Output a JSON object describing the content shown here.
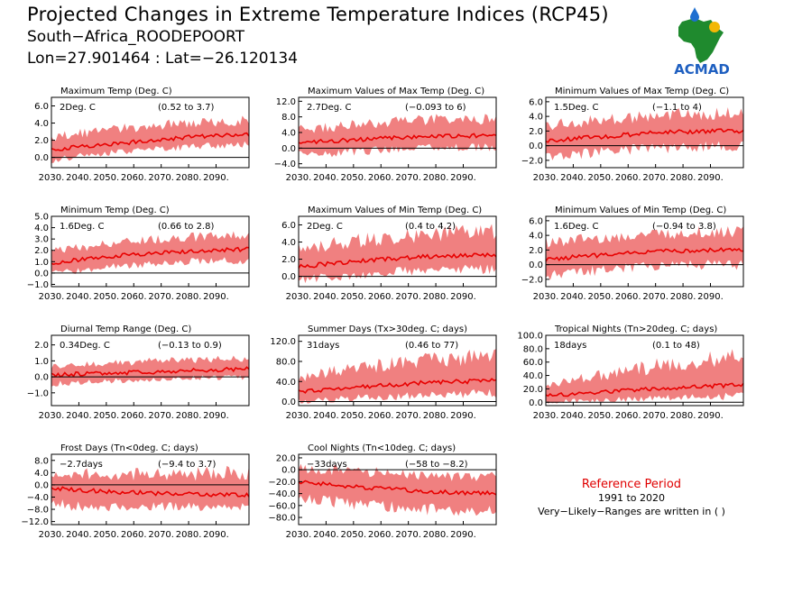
{
  "header": {
    "title": "Projected Changes in Extreme Temperature Indices (RCP45)",
    "subtitle": "South−Africa_ROODEPOORT",
    "coords": "Lon=27.901464 : Lat=−26.120134"
  },
  "logo": {
    "icon": "africa-map-logo",
    "text": "ACMAD"
  },
  "reference": {
    "title": "Reference Period",
    "years": "1991 to 2020",
    "note": "Very−Likely−Ranges are written in ( )"
  },
  "colors": {
    "band": "#f08080",
    "line": "#e80000",
    "reference_title": "#e00000"
  },
  "chart_data": [
    {
      "type": "area",
      "title": "Maximum Temp (Deg. C)",
      "change": "2Deg. C",
      "range": "(0.52 to 3.7)",
      "x_ticks": [
        "2030.",
        "2040.",
        "2050.",
        "2060.",
        "2070.",
        "2080.",
        "2090."
      ],
      "y_ticks": [
        6.0,
        4.0,
        2.0,
        0.0
      ],
      "ylim": [
        -1.2,
        7.0
      ],
      "series": [
        {
          "values": [
            0.9,
            1.3,
            1.6,
            2.0,
            2.3,
            2.5,
            2.6
          ]
        },
        {
          "values": [
            -0.2,
            0.3,
            0.7,
            1.0,
            1.3,
            1.5,
            1.6
          ]
        },
        {
          "values": [
            2.2,
            2.7,
            3.1,
            3.5,
            3.8,
            4.0,
            4.1
          ]
        }
      ]
    },
    {
      "type": "area",
      "title": "Maximum Values of Max Temp (Deg. C)",
      "change": "2.7Deg. C",
      "range": "(−0.093 to 6)",
      "x_ticks": [
        "2030.",
        "2040.",
        "2050.",
        "2060.",
        "2070.",
        "2080.",
        "2090."
      ],
      "y_ticks": [
        12.0,
        8.0,
        4.0,
        0.0,
        -4.0
      ],
      "ylim": [
        -5.0,
        13.0
      ],
      "series": [
        {
          "values": [
            1.3,
            1.9,
            2.2,
            2.7,
            3.0,
            3.1,
            3.3
          ]
        },
        {
          "values": [
            -1.5,
            -1.0,
            -0.5,
            0.0,
            0.3,
            0.4,
            0.5
          ]
        },
        {
          "values": [
            4.5,
            5.0,
            5.8,
            6.3,
            6.8,
            7.0,
            7.2
          ]
        }
      ]
    },
    {
      "type": "area",
      "title": "Minimum Values of Max Temp (Deg. C)",
      "change": "1.5Deg. C",
      "range": "(−1.1 to 4)",
      "x_ticks": [
        "2030.",
        "2040.",
        "2050.",
        "2060.",
        "2070.",
        "2080.",
        "2090."
      ],
      "y_ticks": [
        6.0,
        4.0,
        2.0,
        0.0,
        -2.0
      ],
      "ylim": [
        -3.0,
        6.6
      ],
      "series": [
        {
          "values": [
            0.6,
            1.0,
            1.3,
            1.7,
            1.9,
            2.0,
            2.0
          ]
        },
        {
          "values": [
            -1.3,
            -0.9,
            -0.5,
            -0.2,
            0.0,
            0.1,
            0.2
          ]
        },
        {
          "values": [
            2.6,
            3.0,
            3.4,
            3.7,
            4.0,
            4.1,
            4.2
          ]
        }
      ]
    },
    {
      "type": "area",
      "title": "Minimum Temp (Deg. C)",
      "change": "1.6Deg. C",
      "range": "(0.66 to 2.8)",
      "x_ticks": [
        "2030.",
        "2040.",
        "2050.",
        "2060.",
        "2070.",
        "2080.",
        "2090."
      ],
      "y_ticks": [
        5.0,
        4.0,
        3.0,
        2.0,
        1.0,
        0.0,
        -1.0
      ],
      "ylim": [
        -1.2,
        5.0
      ],
      "series": [
        {
          "values": [
            0.9,
            1.2,
            1.5,
            1.7,
            1.9,
            2.0,
            2.1
          ]
        },
        {
          "values": [
            0.1,
            0.4,
            0.7,
            0.9,
            1.1,
            1.2,
            1.2
          ]
        },
        {
          "values": [
            1.8,
            2.2,
            2.5,
            2.8,
            3.0,
            3.1,
            3.2
          ]
        }
      ]
    },
    {
      "type": "area",
      "title": "Maximum Values of Min Temp (Deg. C)",
      "change": "2Deg. C",
      "range": "(0.4 to 4.2)",
      "x_ticks": [
        "2030.",
        "2040.",
        "2050.",
        "2060.",
        "2070.",
        "2080.",
        "2090."
      ],
      "y_ticks": [
        6.0,
        4.0,
        2.0,
        0.0
      ],
      "ylim": [
        -1.2,
        7.0
      ],
      "series": [
        {
          "values": [
            1.1,
            1.5,
            1.8,
            2.1,
            2.3,
            2.4,
            2.5
          ]
        },
        {
          "values": [
            -0.3,
            0.1,
            0.4,
            0.7,
            0.9,
            1.0,
            1.0
          ]
        },
        {
          "values": [
            3.0,
            3.5,
            4.0,
            4.3,
            4.6,
            4.8,
            4.9
          ]
        }
      ]
    },
    {
      "type": "area",
      "title": "Minimum Values of Min Temp (Deg. C)",
      "change": "1.6Deg. C",
      "range": "(−0.94 to 3.8)",
      "x_ticks": [
        "2030.",
        "2040.",
        "2050.",
        "2060.",
        "2070.",
        "2080.",
        "2090."
      ],
      "y_ticks": [
        6.0,
        4.0,
        2.0,
        0.0,
        -2.0
      ],
      "ylim": [
        -3.0,
        6.6
      ],
      "series": [
        {
          "values": [
            0.7,
            1.1,
            1.4,
            1.7,
            1.9,
            2.0,
            2.0
          ]
        },
        {
          "values": [
            -1.2,
            -0.8,
            -0.4,
            -0.1,
            0.1,
            0.2,
            0.2
          ]
        },
        {
          "values": [
            2.8,
            3.1,
            3.5,
            3.8,
            4.1,
            4.2,
            4.3
          ]
        }
      ]
    },
    {
      "type": "area",
      "title": "Diurnal Temp Range (Deg. C)",
      "change": "0.34Deg. C",
      "range": "(−0.13 to 0.9)",
      "x_ticks": [
        "2030.",
        "2040.",
        "2050.",
        "2060.",
        "2070.",
        "2080.",
        "2090."
      ],
      "y_ticks": [
        2.0,
        1.0,
        0.0,
        -1.0
      ],
      "ylim": [
        -1.8,
        2.6
      ],
      "series": [
        {
          "values": [
            0.1,
            0.2,
            0.25,
            0.3,
            0.4,
            0.45,
            0.5
          ]
        },
        {
          "values": [
            -0.4,
            -0.3,
            -0.2,
            -0.1,
            0.0,
            0.0,
            0.05
          ]
        },
        {
          "values": [
            0.6,
            0.7,
            0.8,
            0.9,
            1.0,
            1.05,
            1.1
          ]
        }
      ]
    },
    {
      "type": "area",
      "title": "Summer Days (Tx>30deg. C; days)",
      "change": "31days",
      "range": "(0.46 to 77)",
      "x_ticks": [
        "2030.",
        "2040.",
        "2050.",
        "2060.",
        "2070.",
        "2080.",
        "2090."
      ],
      "y_ticks": [
        120.0,
        80.0,
        40.0,
        0.0
      ],
      "ylim": [
        -8.0,
        132.0
      ],
      "series": [
        {
          "values": [
            20,
            25,
            30,
            34,
            38,
            40,
            42
          ]
        },
        {
          "values": [
            3,
            6,
            10,
            13,
            16,
            18,
            19
          ]
        },
        {
          "values": [
            45,
            55,
            65,
            72,
            78,
            82,
            85
          ]
        }
      ]
    },
    {
      "type": "area",
      "title": "Tropical Nights (Tn>20deg. C; days)",
      "change": "18days",
      "range": "(0.1 to 48)",
      "x_ticks": [
        "2030.",
        "2040.",
        "2050.",
        "2060.",
        "2070.",
        "2080.",
        "2090."
      ],
      "y_ticks": [
        100.0,
        80.0,
        60.0,
        40.0,
        20.0,
        0.0
      ],
      "ylim": [
        -5.0,
        100.0
      ],
      "series": [
        {
          "values": [
            10,
            13,
            16,
            19,
            22,
            24,
            26
          ]
        },
        {
          "values": [
            2,
            3,
            5,
            7,
            9,
            10,
            11
          ]
        },
        {
          "values": [
            25,
            32,
            40,
            48,
            55,
            60,
            63
          ]
        }
      ]
    },
    {
      "type": "area",
      "title": "Frost Days (Tn<0deg. C; days)",
      "change": "−2.7days",
      "range": "(−9.4 to 3.7)",
      "x_ticks": [
        "2030.",
        "2040.",
        "2050.",
        "2060.",
        "2070.",
        "2080.",
        "2090."
      ],
      "y_ticks": [
        8.0,
        4.0,
        0.0,
        -4.0,
        -8.0,
        -12.0
      ],
      "ylim": [
        -13.0,
        10.0
      ],
      "series": [
        {
          "values": [
            -1.0,
            -1.8,
            -2.3,
            -2.7,
            -3.0,
            -3.2,
            -3.3
          ]
        },
        {
          "values": [
            -6.0,
            -6.3,
            -6.5,
            -6.6,
            -6.7,
            -6.8,
            -6.8
          ]
        },
        {
          "values": [
            3.0,
            3.0,
            3.0,
            3.0,
            3.0,
            3.0,
            3.0
          ]
        }
      ]
    },
    {
      "type": "area",
      "title": "Cool Nights (Tn<10deg. C; days)",
      "change": "−33days",
      "range": "(−58 to −8.2)",
      "x_ticks": [
        "2030.",
        "2040.",
        "2050.",
        "2060.",
        "2070.",
        "2080.",
        "2090."
      ],
      "y_ticks": [
        20.0,
        0.0,
        -20.0,
        -40.0,
        -60.0,
        -80.0
      ],
      "ylim": [
        -92.0,
        26.0
      ],
      "series": [
        {
          "values": [
            -20,
            -25,
            -30,
            -33,
            -37,
            -39,
            -40
          ]
        },
        {
          "values": [
            -45,
            -50,
            -56,
            -60,
            -64,
            -66,
            -67
          ]
        },
        {
          "values": [
            0,
            -3,
            -6,
            -10,
            -12,
            -14,
            -15
          ]
        }
      ]
    }
  ]
}
